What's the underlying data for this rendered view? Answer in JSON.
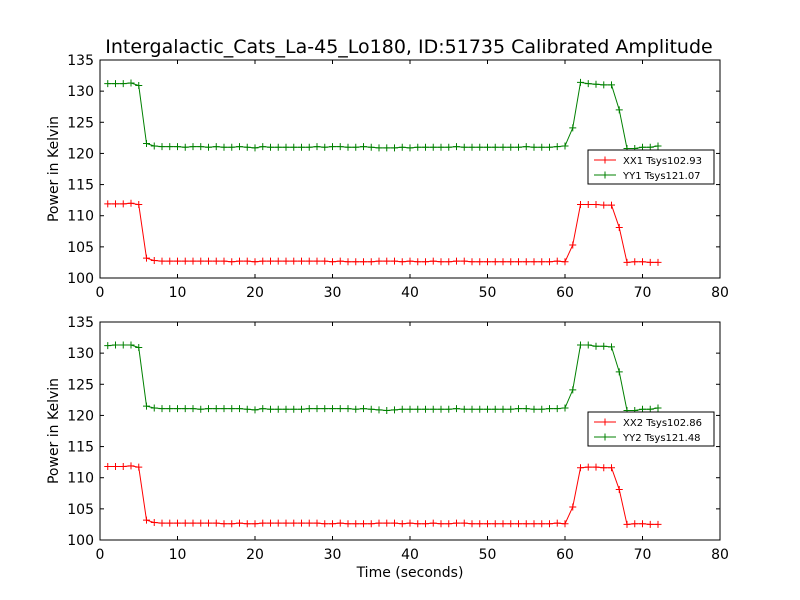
{
  "title": "Intergalactic_Cats_La-45_Lo180, ID:51735 Calibrated Amplitude",
  "colors": {
    "red": "#ff0000",
    "green": "#008000"
  },
  "chart_data": [
    {
      "type": "line",
      "xlabel": "",
      "ylabel": "Power in Kelvin",
      "xlim": [
        0,
        80
      ],
      "ylim": [
        100,
        135
      ],
      "xticks": [
        "0",
        "10",
        "20",
        "30",
        "40",
        "50",
        "60",
        "70",
        "80"
      ],
      "yticks": [
        "100",
        "105",
        "110",
        "115",
        "120",
        "125",
        "130",
        "135"
      ],
      "grid": false,
      "legend_position": "right",
      "series": [
        {
          "name": "XX1 Tsys102.93",
          "color": "#ff0000",
          "x": [
            1,
            2,
            3,
            4,
            5,
            6,
            7,
            8,
            9,
            10,
            11,
            12,
            13,
            14,
            15,
            16,
            17,
            18,
            19,
            20,
            21,
            22,
            23,
            24,
            25,
            26,
            27,
            28,
            29,
            30,
            31,
            32,
            33,
            34,
            35,
            36,
            37,
            38,
            39,
            40,
            41,
            42,
            43,
            44,
            45,
            46,
            47,
            48,
            49,
            50,
            51,
            52,
            53,
            54,
            55,
            56,
            57,
            58,
            59,
            60,
            61,
            62,
            63,
            64,
            65,
            66,
            67,
            68,
            69,
            70,
            71,
            72
          ],
          "values": [
            111.9,
            111.9,
            111.9,
            112.0,
            111.8,
            103.2,
            102.8,
            102.7,
            102.7,
            102.7,
            102.7,
            102.7,
            102.7,
            102.7,
            102.7,
            102.7,
            102.6,
            102.7,
            102.7,
            102.6,
            102.7,
            102.7,
            102.7,
            102.7,
            102.7,
            102.7,
            102.7,
            102.7,
            102.7,
            102.6,
            102.7,
            102.6,
            102.6,
            102.6,
            102.6,
            102.7,
            102.7,
            102.7,
            102.6,
            102.7,
            102.6,
            102.6,
            102.7,
            102.6,
            102.6,
            102.7,
            102.7,
            102.6,
            102.6,
            102.6,
            102.6,
            102.6,
            102.6,
            102.6,
            102.6,
            102.6,
            102.6,
            102.6,
            102.7,
            102.6,
            105.3,
            111.8,
            111.8,
            111.8,
            111.7,
            111.7,
            108.1,
            102.5,
            102.6,
            102.6,
            102.5,
            102.5
          ]
        },
        {
          "name": "YY1 Tsys121.07",
          "color": "#008000",
          "x": [
            1,
            2,
            3,
            4,
            5,
            6,
            7,
            8,
            9,
            10,
            11,
            12,
            13,
            14,
            15,
            16,
            17,
            18,
            19,
            20,
            21,
            22,
            23,
            24,
            25,
            26,
            27,
            28,
            29,
            30,
            31,
            32,
            33,
            34,
            35,
            36,
            37,
            38,
            39,
            40,
            41,
            42,
            43,
            44,
            45,
            46,
            47,
            48,
            49,
            50,
            51,
            52,
            53,
            54,
            55,
            56,
            57,
            58,
            59,
            60,
            61,
            62,
            63,
            64,
            65,
            66,
            67,
            68,
            69,
            70,
            71,
            72
          ],
          "values": [
            131.2,
            131.2,
            131.2,
            131.3,
            130.9,
            121.6,
            121.2,
            121.1,
            121.1,
            121.1,
            121.0,
            121.1,
            121.1,
            121.0,
            121.1,
            121.0,
            121.0,
            121.1,
            121.0,
            120.9,
            121.1,
            121.0,
            121.0,
            121.0,
            121.0,
            121.0,
            121.0,
            121.1,
            121.0,
            121.1,
            121.1,
            121.0,
            121.0,
            121.1,
            121.0,
            120.9,
            120.9,
            120.9,
            121.0,
            120.9,
            121.0,
            121.0,
            121.0,
            121.0,
            121.0,
            121.1,
            121.0,
            121.0,
            121.0,
            121.0,
            121.0,
            121.0,
            121.0,
            121.0,
            121.1,
            121.0,
            121.0,
            121.0,
            121.1,
            121.2,
            124.1,
            131.4,
            131.2,
            131.1,
            131.0,
            131.0,
            127.0,
            120.8,
            120.8,
            121.0,
            121.0,
            121.2
          ]
        }
      ]
    },
    {
      "type": "line",
      "xlabel": "Time (seconds)",
      "ylabel": "Power in Kelvin",
      "xlim": [
        0,
        80
      ],
      "ylim": [
        100,
        135
      ],
      "xticks": [
        "0",
        "10",
        "20",
        "30",
        "40",
        "50",
        "60",
        "70",
        "80"
      ],
      "yticks": [
        "100",
        "105",
        "110",
        "115",
        "120",
        "125",
        "130",
        "135"
      ],
      "grid": false,
      "legend_position": "right",
      "series": [
        {
          "name": "XX2 Tsys102.86",
          "color": "#ff0000",
          "x": [
            1,
            2,
            3,
            4,
            5,
            6,
            7,
            8,
            9,
            10,
            11,
            12,
            13,
            14,
            15,
            16,
            17,
            18,
            19,
            20,
            21,
            22,
            23,
            24,
            25,
            26,
            27,
            28,
            29,
            30,
            31,
            32,
            33,
            34,
            35,
            36,
            37,
            38,
            39,
            40,
            41,
            42,
            43,
            44,
            45,
            46,
            47,
            48,
            49,
            50,
            51,
            52,
            53,
            54,
            55,
            56,
            57,
            58,
            59,
            60,
            61,
            62,
            63,
            64,
            65,
            66,
            67,
            68,
            69,
            70,
            71,
            72
          ],
          "values": [
            111.8,
            111.8,
            111.8,
            111.9,
            111.7,
            103.2,
            102.8,
            102.7,
            102.7,
            102.7,
            102.7,
            102.7,
            102.7,
            102.7,
            102.7,
            102.6,
            102.6,
            102.7,
            102.6,
            102.6,
            102.7,
            102.7,
            102.7,
            102.7,
            102.7,
            102.7,
            102.7,
            102.7,
            102.6,
            102.6,
            102.7,
            102.6,
            102.6,
            102.6,
            102.6,
            102.7,
            102.7,
            102.7,
            102.6,
            102.7,
            102.6,
            102.6,
            102.7,
            102.6,
            102.6,
            102.7,
            102.7,
            102.6,
            102.6,
            102.6,
            102.6,
            102.6,
            102.6,
            102.6,
            102.6,
            102.6,
            102.6,
            102.6,
            102.7,
            102.6,
            105.3,
            111.6,
            111.7,
            111.7,
            111.6,
            111.6,
            108.1,
            102.5,
            102.6,
            102.6,
            102.5,
            102.5
          ]
        },
        {
          "name": "YY2 Tsys121.48",
          "color": "#008000",
          "x": [
            1,
            2,
            3,
            4,
            5,
            6,
            7,
            8,
            9,
            10,
            11,
            12,
            13,
            14,
            15,
            16,
            17,
            18,
            19,
            20,
            21,
            22,
            23,
            24,
            25,
            26,
            27,
            28,
            29,
            30,
            31,
            32,
            33,
            34,
            35,
            36,
            37,
            38,
            39,
            40,
            41,
            42,
            43,
            44,
            45,
            46,
            47,
            48,
            49,
            50,
            51,
            52,
            53,
            54,
            55,
            56,
            57,
            58,
            59,
            60,
            61,
            62,
            63,
            64,
            65,
            66,
            67,
            68,
            69,
            70,
            71,
            72
          ],
          "values": [
            131.2,
            131.3,
            131.3,
            131.3,
            130.9,
            121.5,
            121.2,
            121.1,
            121.1,
            121.1,
            121.1,
            121.1,
            121.0,
            121.1,
            121.1,
            121.1,
            121.1,
            121.1,
            121.0,
            120.9,
            121.1,
            121.0,
            121.0,
            121.0,
            121.0,
            121.0,
            121.1,
            121.1,
            121.1,
            121.1,
            121.1,
            121.1,
            121.0,
            121.1,
            121.0,
            120.9,
            120.8,
            120.9,
            121.0,
            121.0,
            121.0,
            121.0,
            121.0,
            121.0,
            121.0,
            121.1,
            121.0,
            121.0,
            121.0,
            121.0,
            121.0,
            121.0,
            121.0,
            121.1,
            121.1,
            121.0,
            121.0,
            121.1,
            121.1,
            121.2,
            124.1,
            131.3,
            131.3,
            131.1,
            131.1,
            131.0,
            127.0,
            120.8,
            120.8,
            121.0,
            121.0,
            121.2
          ]
        }
      ]
    }
  ]
}
